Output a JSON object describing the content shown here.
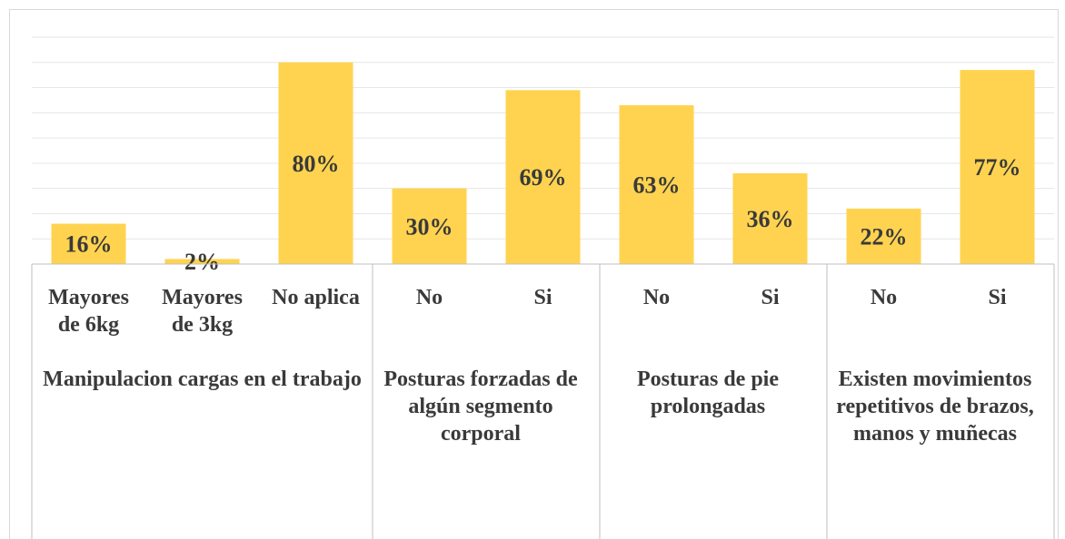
{
  "chart_data": {
    "type": "bar",
    "color": "#ffd34f",
    "grid": true,
    "ylim": [
      0,
      90
    ],
    "yticks": [
      0,
      10,
      20,
      30,
      40,
      50,
      60,
      70,
      80,
      90
    ],
    "groups": [
      {
        "name": "Manipulacion cargas en el trabajo",
        "categories": [
          "Mayores de 6kg",
          "Mayores de 3kg",
          "No aplica"
        ],
        "values": [
          16,
          2,
          80
        ],
        "value_labels": [
          "16%",
          "2%",
          "80%"
        ]
      },
      {
        "name": "Posturas forzadas de algún segmento corporal",
        "categories": [
          "No",
          "Si"
        ],
        "values": [
          30,
          69
        ],
        "value_labels": [
          "30%",
          "69%"
        ]
      },
      {
        "name": "Posturas de pie prolongadas",
        "categories": [
          "No",
          "Si"
        ],
        "values": [
          63,
          36
        ],
        "value_labels": [
          "63%",
          "36%"
        ]
      },
      {
        "name": "Existen movimientos repetitivos de brazos, manos y muñecas",
        "categories": [
          "No",
          "Si"
        ],
        "values": [
          22,
          77
        ],
        "value_labels": [
          "22%",
          "77%"
        ]
      }
    ]
  }
}
